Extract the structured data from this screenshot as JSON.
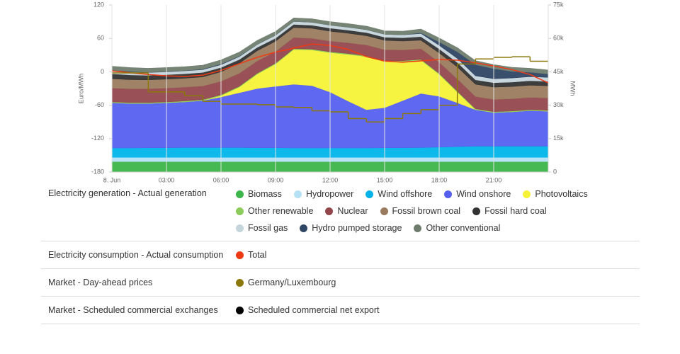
{
  "chart_data": {
    "type": "area",
    "y_label": "Euro/MWh",
    "y2_label": "MWh",
    "x": [
      0,
      1,
      2,
      3,
      4,
      5,
      6,
      7,
      8,
      9,
      10,
      11,
      12,
      13,
      14,
      15,
      16,
      17,
      18,
      19,
      20,
      21,
      22,
      23,
      24
    ],
    "xlim": [
      0,
      24
    ],
    "xticks": [
      {
        "value": 0,
        "label": "8. Jun"
      },
      {
        "value": 3,
        "label": "03:00"
      },
      {
        "value": 6,
        "label": "06:00"
      },
      {
        "value": 9,
        "label": "09:00"
      },
      {
        "value": 12,
        "label": "12:00"
      },
      {
        "value": 15,
        "label": "15:00"
      },
      {
        "value": 18,
        "label": "18:00"
      },
      {
        "value": 21,
        "label": "21:00"
      }
    ],
    "ylim": [
      -180,
      120
    ],
    "yticks": [
      -180,
      -120,
      -60,
      0,
      60,
      120
    ],
    "y2lim": [
      0,
      75000
    ],
    "y2ticks": [
      0,
      {
        "value": 15000,
        "label": "15k"
      },
      {
        "value": 30000,
        "label": "30k"
      },
      {
        "value": 45000,
        "label": "45k"
      },
      {
        "value": 60000,
        "label": "60k"
      },
      {
        "value": 75000,
        "label": "75k"
      }
    ],
    "grid": "x",
    "legend_groups": [
      "Electricity generation - Actual generation",
      "Electricity consumption - Actual consumption",
      "Market - Day-ahead prices",
      "Market - Scheduled commercial exchanges"
    ],
    "series": [
      {
        "name": "Biomass",
        "color": "#3cb54a",
        "type": "area",
        "axis": "y2",
        "group": 0,
        "values": [
          4700,
          4700,
          4700,
          4700,
          4700,
          4700,
          4700,
          4700,
          4700,
          4700,
          4700,
          4700,
          4700,
          4700,
          4700,
          4700,
          4700,
          4700,
          4700,
          4700,
          4700,
          4700,
          4700,
          4700,
          4700
        ]
      },
      {
        "name": "Hydropower",
        "color": "#b5e1f5",
        "type": "area",
        "axis": "y2",
        "group": 0,
        "values": [
          1900,
          1900,
          1900,
          1900,
          1900,
          1900,
          1900,
          1900,
          1900,
          1900,
          1900,
          1900,
          1900,
          1900,
          1900,
          1900,
          1900,
          1900,
          1900,
          1900,
          1900,
          1900,
          1900,
          1900,
          1900
        ]
      },
      {
        "name": "Wind offshore",
        "color": "#00b4ea",
        "type": "area",
        "axis": "y2",
        "group": 0,
        "values": [
          4200,
          4200,
          4300,
          4300,
          4400,
          4400,
          4400,
          4400,
          4300,
          4300,
          4200,
          4200,
          4200,
          4200,
          4200,
          4300,
          4300,
          4400,
          4600,
          4800,
          5000,
          5000,
          5000,
          5000,
          5000
        ]
      },
      {
        "name": "Wind onshore",
        "color": "#5660ef",
        "type": "area",
        "axis": "y2",
        "group": 0,
        "values": [
          20300,
          20000,
          19900,
          20200,
          20500,
          21100,
          22700,
          24600,
          26600,
          27600,
          28600,
          28000,
          25100,
          21000,
          17200,
          18000,
          21200,
          24300,
          22800,
          19700,
          16400,
          15100,
          15400,
          16000,
          15700
        ]
      },
      {
        "name": "Photovoltaics",
        "color": "#f6f337",
        "type": "area",
        "axis": "y2",
        "group": 0,
        "values": [
          0,
          0,
          0,
          0,
          0,
          0,
          600,
          2500,
          6500,
          10000,
          15600,
          16000,
          17700,
          21000,
          23800,
          20700,
          17500,
          14900,
          9900,
          4800,
          0,
          0,
          0,
          0,
          0
        ]
      },
      {
        "name": "Other renewable",
        "color": "#8ccc5a",
        "type": "area",
        "axis": "y2",
        "group": 0,
        "values": [
          400,
          400,
          400,
          400,
          400,
          400,
          400,
          400,
          400,
          400,
          400,
          400,
          400,
          400,
          400,
          400,
          400,
          400,
          400,
          400,
          400,
          400,
          400,
          400,
          400
        ]
      },
      {
        "name": "Nuclear",
        "color": "#93474d",
        "type": "area",
        "axis": "y2",
        "group": 0,
        "values": [
          6200,
          6200,
          6200,
          6200,
          6200,
          6100,
          6000,
          5800,
          5500,
          5200,
          5000,
          4800,
          4800,
          4800,
          4800,
          4900,
          4800,
          4800,
          5000,
          5500,
          5500,
          5500,
          5500,
          5500,
          5500
        ]
      },
      {
        "name": "Fossil brown coal",
        "color": "#9b7b5e",
        "type": "area",
        "axis": "y2",
        "group": 0,
        "values": [
          4200,
          4100,
          4000,
          4000,
          4000,
          4100,
          4300,
          4500,
          4600,
          4600,
          4500,
          4500,
          4400,
          4300,
          4200,
          4200,
          4000,
          3800,
          4200,
          5400,
          5500,
          5500,
          5500,
          5500,
          5500
        ]
      },
      {
        "name": "Fossil hard coal",
        "color": "#333333",
        "type": "area",
        "axis": "y2",
        "group": 0,
        "values": [
          2200,
          2100,
          2000,
          2000,
          2000,
          2000,
          1900,
          1700,
          1500,
          1400,
          1400,
          1400,
          1400,
          1400,
          1400,
          1400,
          1500,
          1600,
          1800,
          2000,
          2000,
          2000,
          2000,
          2000,
          2000
        ]
      },
      {
        "name": "Fossil gas",
        "color": "#c5d5dc",
        "type": "area",
        "axis": "y2",
        "group": 0,
        "values": [
          1300,
          1300,
          1300,
          1300,
          1300,
          1300,
          1300,
          1300,
          1300,
          1300,
          1300,
          1300,
          1300,
          1300,
          1300,
          1300,
          1300,
          1400,
          1600,
          1800,
          1800,
          1800,
          1800,
          1800,
          1800
        ]
      },
      {
        "name": "Hydro pumped storage",
        "color": "#2f4664",
        "type": "area",
        "axis": "y2",
        "group": 0,
        "values": [
          300,
          200,
          100,
          100,
          100,
          200,
          300,
          200,
          0,
          0,
          0,
          0,
          0,
          0,
          0,
          0,
          0,
          300,
          1500,
          3000,
          5000,
          4500,
          3000,
          2000,
          1500
        ]
      },
      {
        "name": "Other conventional",
        "color": "#6f7d6f",
        "type": "area",
        "axis": "y2",
        "group": 0,
        "values": [
          1800,
          1800,
          1800,
          1800,
          1800,
          1800,
          1800,
          1800,
          1800,
          1700,
          1600,
          1600,
          1600,
          1600,
          1600,
          1600,
          1600,
          1700,
          1800,
          1800,
          1800,
          1800,
          1800,
          1800,
          1800
        ]
      },
      {
        "name": "Total",
        "color": "#ee3a14",
        "type": "line",
        "axis": "y2",
        "group": 1,
        "values": [
          45400,
          44600,
          43800,
          43200,
          42900,
          43500,
          45600,
          48600,
          51500,
          53800,
          55600,
          57500,
          56800,
          55000,
          51800,
          49800,
          49300,
          49900,
          50500,
          50200,
          49000,
          47600,
          46000,
          43800,
          40000
        ]
      },
      {
        "name": "Germany/Luxembourg",
        "color": "#8c780a",
        "type": "step",
        "group": 2,
        "values": [
          -2,
          -2,
          -36,
          -36,
          -43,
          -53,
          -58,
          -58,
          -59,
          -63,
          -64,
          -70,
          -72,
          -84,
          -90,
          -84,
          -75,
          -68,
          -60,
          14,
          23,
          26,
          27,
          19,
          null
        ]
      },
      {
        "name": "Scheduled commercial net export",
        "color": "#000000",
        "type": "line",
        "axis": "y2",
        "group": 3
      }
    ]
  }
}
